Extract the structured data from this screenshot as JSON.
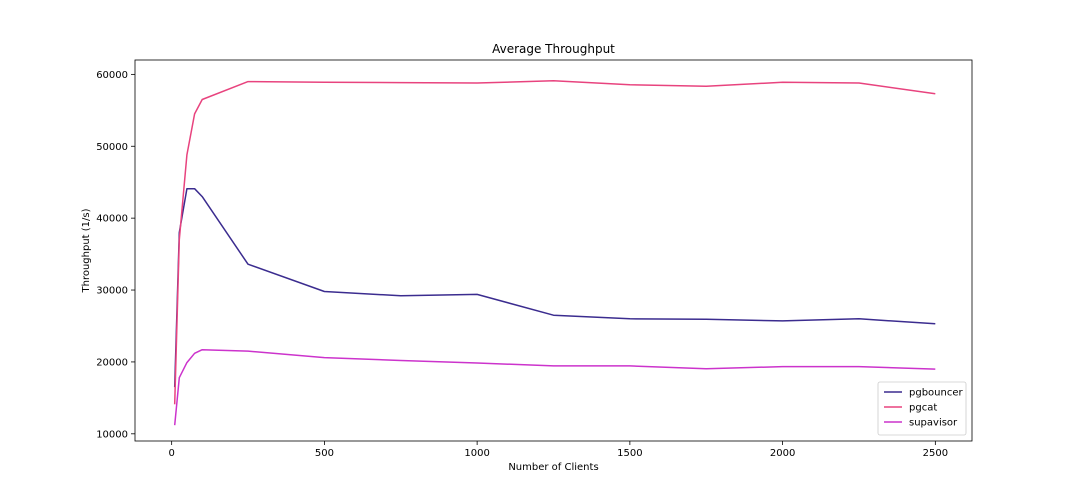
{
  "chart_data": {
    "type": "line",
    "title": "Average Throughput",
    "xlabel": "Number of Clients",
    "ylabel": "Throughput (1/s)",
    "xlim": [
      -120,
      2620
    ],
    "ylim": [
      9000,
      62000
    ],
    "xticks": [
      0,
      500,
      1000,
      1500,
      2000,
      2500
    ],
    "yticks": [
      10000,
      20000,
      30000,
      40000,
      50000,
      60000
    ],
    "grid": false,
    "legend_position": "lower-right",
    "series": [
      {
        "name": "pgbouncer",
        "color": "#3b2c8f",
        "x": [
          10,
          25,
          50,
          75,
          100,
          250,
          500,
          750,
          1000,
          1250,
          1500,
          1750,
          2000,
          2250,
          2500
        ],
        "y": [
          16500,
          38000,
          44100,
          44100,
          43000,
          33600,
          29800,
          29200,
          29400,
          26500,
          26000,
          25950,
          25700,
          26000,
          25300
        ]
      },
      {
        "name": "pgcat",
        "color": "#e8437e",
        "x": [
          10,
          25,
          50,
          75,
          100,
          250,
          500,
          750,
          1000,
          1250,
          1500,
          1750,
          2000,
          2250,
          2500
        ],
        "y": [
          14100,
          37000,
          48800,
          54500,
          56500,
          59000,
          58900,
          58850,
          58800,
          59100,
          58550,
          58350,
          58900,
          58800,
          57300
        ]
      },
      {
        "name": "supavisor",
        "color": "#cc33cc",
        "x": [
          10,
          25,
          50,
          75,
          100,
          250,
          500,
          750,
          1000,
          1250,
          1500,
          1750,
          2000,
          2250,
          2500
        ],
        "y": [
          11200,
          17800,
          19900,
          21200,
          21700,
          21500,
          20600,
          20200,
          19850,
          19450,
          19450,
          19050,
          19350,
          19350,
          19000
        ]
      }
    ]
  }
}
